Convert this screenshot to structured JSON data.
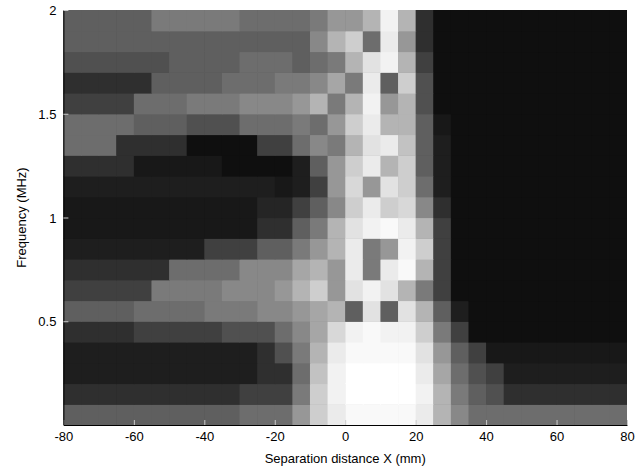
{
  "chart_data": {
    "type": "heatmap",
    "x_label": "Separation distance X (mm)",
    "y_label": "Frequency (MHz)",
    "xlim": [
      -80,
      80
    ],
    "ylim": [
      0,
      2
    ],
    "xticks": [
      -80,
      -60,
      -40,
      -20,
      0,
      20,
      40,
      60,
      80
    ],
    "yticks": [
      0.5,
      1,
      1.5,
      2
    ],
    "zlim": [
      0,
      1
    ],
    "x": [
      -77.5,
      -72.5,
      -67.5,
      -62.5,
      -57.5,
      -52.5,
      -47.5,
      -42.5,
      -37.5,
      -32.5,
      -27.5,
      -22.5,
      -17.5,
      -12.5,
      -7.5,
      -2.5,
      2.5,
      7.5,
      12.5,
      17.5,
      22.5,
      27.5,
      32.5,
      37.5,
      42.5,
      47.5,
      52.5,
      57.5,
      62.5,
      67.5,
      72.5,
      77.5
    ],
    "y": [
      0.05,
      0.15,
      0.25,
      0.35,
      0.45,
      0.55,
      0.65,
      0.75,
      0.85,
      0.95,
      1.05,
      1.15,
      1.25,
      1.35,
      1.45,
      1.55,
      1.65,
      1.75,
      1.85,
      1.95
    ],
    "values": [
      [
        0.3,
        0.3,
        0.3,
        0.3,
        0.3,
        0.3,
        0.3,
        0.3,
        0.3,
        0.3,
        0.35,
        0.35,
        0.35,
        0.5,
        0.7,
        0.85,
        0.95,
        0.95,
        0.95,
        0.95,
        0.85,
        0.6,
        0.45,
        0.35,
        0.35,
        0.35,
        0.35,
        0.35,
        0.35,
        0.35,
        0.35,
        0.35
      ],
      [
        0.15,
        0.15,
        0.15,
        0.15,
        0.15,
        0.15,
        0.15,
        0.15,
        0.15,
        0.15,
        0.2,
        0.2,
        0.2,
        0.4,
        0.7,
        0.9,
        1,
        1,
        1,
        1,
        0.9,
        0.6,
        0.4,
        0.3,
        0.25,
        0.15,
        0.15,
        0.15,
        0.15,
        0.15,
        0.15,
        0.15
      ],
      [
        0.1,
        0.1,
        0.1,
        0.1,
        0.1,
        0.1,
        0.1,
        0.1,
        0.1,
        0.1,
        0.1,
        0.15,
        0.15,
        0.35,
        0.65,
        0.9,
        1,
        1,
        1,
        1,
        0.85,
        0.55,
        0.35,
        0.25,
        0.2,
        0.1,
        0.1,
        0.1,
        0.1,
        0.1,
        0.1,
        0.1
      ],
      [
        0.1,
        0.1,
        0.1,
        0.1,
        0.1,
        0.1,
        0.1,
        0.1,
        0.1,
        0.1,
        0.1,
        0.15,
        0.25,
        0.4,
        0.6,
        0.85,
        0.95,
        0.95,
        0.95,
        0.95,
        0.8,
        0.5,
        0.3,
        0.2,
        0.08,
        0.08,
        0.08,
        0.08,
        0.08,
        0.08,
        0.08,
        0.08
      ],
      [
        0.15,
        0.15,
        0.15,
        0.15,
        0.2,
        0.2,
        0.2,
        0.2,
        0.2,
        0.25,
        0.25,
        0.25,
        0.35,
        0.45,
        0.55,
        0.75,
        0.9,
        0.95,
        0.9,
        0.9,
        0.7,
        0.4,
        0.2,
        0.05,
        0.05,
        0.05,
        0.05,
        0.05,
        0.05,
        0.05,
        0.05,
        0.05
      ],
      [
        0.3,
        0.3,
        0.3,
        0.3,
        0.35,
        0.35,
        0.35,
        0.35,
        0.4,
        0.4,
        0.4,
        0.45,
        0.45,
        0.5,
        0.55,
        0.6,
        0.3,
        0.8,
        0.3,
        0.8,
        0.6,
        0.3,
        0.1,
        0.05,
        0.05,
        0.05,
        0.05,
        0.05,
        0.05,
        0.05,
        0.05,
        0.05
      ],
      [
        0.2,
        0.2,
        0.2,
        0.2,
        0.2,
        0.4,
        0.4,
        0.4,
        0.4,
        0.45,
        0.45,
        0.45,
        0.5,
        0.6,
        0.7,
        0.5,
        0.8,
        0.9,
        0.8,
        0.6,
        0.4,
        0.2,
        0.05,
        0.05,
        0.05,
        0.05,
        0.05,
        0.05,
        0.05,
        0.05,
        0.05,
        0.05
      ],
      [
        0.15,
        0.15,
        0.15,
        0.15,
        0.15,
        0.15,
        0.35,
        0.35,
        0.35,
        0.35,
        0.45,
        0.45,
        0.45,
        0.55,
        0.6,
        0.5,
        0.85,
        0.4,
        0.85,
        0.95,
        0.6,
        0.2,
        0.05,
        0.05,
        0.05,
        0.05,
        0.05,
        0.05,
        0.05,
        0.05,
        0.05,
        0.05
      ],
      [
        0.1,
        0.1,
        0.1,
        0.1,
        0.1,
        0.1,
        0.1,
        0.1,
        0.2,
        0.2,
        0.2,
        0.3,
        0.3,
        0.4,
        0.5,
        0.6,
        0.85,
        0.4,
        0.5,
        0.9,
        0.7,
        0.2,
        0.05,
        0.05,
        0.05,
        0.05,
        0.05,
        0.05,
        0.05,
        0.05,
        0.05,
        0.05
      ],
      [
        0.08,
        0.08,
        0.08,
        0.08,
        0.08,
        0.08,
        0.08,
        0.08,
        0.08,
        0.08,
        0.08,
        0.15,
        0.15,
        0.3,
        0.4,
        0.6,
        0.8,
        0.9,
        0.95,
        0.85,
        0.6,
        0.2,
        0.05,
        0.05,
        0.05,
        0.05,
        0.05,
        0.05,
        0.05,
        0.05,
        0.05,
        0.05
      ],
      [
        0.08,
        0.08,
        0.08,
        0.08,
        0.08,
        0.08,
        0.08,
        0.08,
        0.08,
        0.08,
        0.08,
        0.12,
        0.12,
        0.2,
        0.3,
        0.45,
        0.7,
        0.85,
        0.7,
        0.75,
        0.45,
        0.15,
        0.05,
        0.05,
        0.05,
        0.05,
        0.05,
        0.05,
        0.05,
        0.05,
        0.05,
        0.05
      ],
      [
        0.1,
        0.1,
        0.1,
        0.1,
        0.1,
        0.1,
        0.1,
        0.1,
        0.1,
        0.1,
        0.1,
        0.1,
        0.08,
        0.1,
        0.2,
        0.5,
        0.75,
        0.5,
        0.8,
        0.7,
        0.35,
        0.1,
        0.05,
        0.05,
        0.05,
        0.05,
        0.05,
        0.05,
        0.05,
        0.05,
        0.05,
        0.05
      ],
      [
        0.15,
        0.15,
        0.15,
        0.15,
        0.08,
        0.08,
        0.08,
        0.08,
        0.08,
        0.05,
        0.05,
        0.05,
        0.05,
        0.1,
        0.3,
        0.5,
        0.7,
        0.85,
        0.6,
        0.7,
        0.3,
        0.1,
        0.05,
        0.05,
        0.05,
        0.05,
        0.05,
        0.05,
        0.05,
        0.05,
        0.05,
        0.05
      ],
      [
        0.35,
        0.35,
        0.35,
        0.15,
        0.15,
        0.15,
        0.15,
        0.05,
        0.05,
        0.05,
        0.05,
        0.2,
        0.2,
        0.35,
        0.45,
        0.4,
        0.6,
        0.8,
        0.85,
        0.65,
        0.3,
        0.1,
        0.05,
        0.05,
        0.05,
        0.05,
        0.05,
        0.05,
        0.05,
        0.05,
        0.05,
        0.05
      ],
      [
        0.35,
        0.35,
        0.35,
        0.35,
        0.3,
        0.3,
        0.3,
        0.25,
        0.25,
        0.25,
        0.35,
        0.35,
        0.35,
        0.4,
        0.35,
        0.5,
        0.7,
        0.85,
        0.6,
        0.6,
        0.3,
        0.08,
        0.05,
        0.05,
        0.05,
        0.05,
        0.05,
        0.05,
        0.05,
        0.05,
        0.05,
        0.05
      ],
      [
        0.2,
        0.2,
        0.2,
        0.2,
        0.35,
        0.35,
        0.35,
        0.4,
        0.4,
        0.4,
        0.45,
        0.45,
        0.45,
        0.5,
        0.6,
        0.4,
        0.6,
        0.9,
        0.5,
        0.6,
        0.25,
        0.05,
        0.05,
        0.05,
        0.05,
        0.05,
        0.05,
        0.05,
        0.05,
        0.05,
        0.05,
        0.05
      ],
      [
        0.15,
        0.15,
        0.15,
        0.15,
        0.15,
        0.3,
        0.3,
        0.3,
        0.3,
        0.35,
        0.35,
        0.35,
        0.4,
        0.4,
        0.45,
        0.55,
        0.4,
        0.85,
        0.3,
        0.7,
        0.25,
        0.05,
        0.05,
        0.05,
        0.05,
        0.05,
        0.05,
        0.05,
        0.05,
        0.05,
        0.05,
        0.05
      ],
      [
        0.25,
        0.25,
        0.25,
        0.25,
        0.25,
        0.25,
        0.3,
        0.3,
        0.3,
        0.3,
        0.35,
        0.35,
        0.35,
        0.3,
        0.35,
        0.4,
        0.6,
        0.8,
        0.9,
        0.6,
        0.2,
        0.05,
        0.05,
        0.05,
        0.05,
        0.05,
        0.05,
        0.05,
        0.05,
        0.05,
        0.05,
        0.05
      ],
      [
        0.3,
        0.3,
        0.3,
        0.3,
        0.3,
        0.3,
        0.3,
        0.3,
        0.3,
        0.3,
        0.3,
        0.3,
        0.3,
        0.3,
        0.45,
        0.6,
        0.7,
        0.35,
        0.85,
        0.5,
        0.15,
        0.05,
        0.05,
        0.05,
        0.05,
        0.05,
        0.05,
        0.05,
        0.05,
        0.05,
        0.05,
        0.05
      ],
      [
        0.3,
        0.3,
        0.3,
        0.3,
        0.3,
        0.4,
        0.4,
        0.4,
        0.4,
        0.4,
        0.35,
        0.35,
        0.35,
        0.35,
        0.4,
        0.5,
        0.5,
        0.6,
        0.9,
        0.6,
        0.15,
        0.05,
        0.05,
        0.05,
        0.05,
        0.05,
        0.05,
        0.05,
        0.05,
        0.05,
        0.05,
        0.05
      ]
    ]
  }
}
